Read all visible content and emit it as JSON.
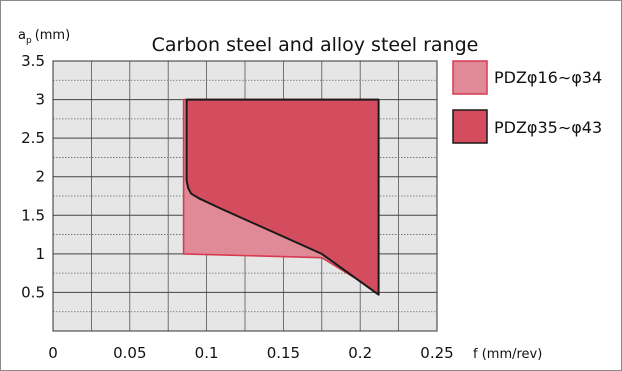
{
  "chart_data": {
    "type": "area",
    "title": "Carbon steel and alloy steel range",
    "xlabel": "f (mm/rev)",
    "ylabel_main": "a",
    "ylabel_sub": "p",
    "ylabel_unit": "(mm)",
    "xlim": [
      0,
      0.25
    ],
    "ylim": [
      0,
      3.5
    ],
    "x_ticks": [
      "0",
      "0.05",
      "0.1",
      "0.15",
      "0.2",
      "0.25"
    ],
    "y_ticks": [
      "0.5",
      "1",
      "1.5",
      "2",
      "2.5",
      "3",
      "3.5"
    ],
    "grid": true,
    "legend_position": "right",
    "series": [
      {
        "name": "PDZφ16∼φ34",
        "color": "#df8a96",
        "stroke": "#d63a50",
        "points": [
          [
            0.085,
            1.0
          ],
          [
            0.085,
            3.0
          ],
          [
            0.212,
            3.0
          ],
          [
            0.212,
            0.5
          ],
          [
            0.175,
            0.95
          ],
          [
            0.085,
            1.0
          ]
        ]
      },
      {
        "name": "PDZφ35∼φ43",
        "color": "#d44d5e",
        "stroke": "#1a1a1a",
        "points": [
          [
            0.087,
            3.0
          ],
          [
            0.087,
            1.95
          ],
          [
            0.088,
            1.85
          ],
          [
            0.09,
            1.78
          ],
          [
            0.095,
            1.72
          ],
          [
            0.11,
            1.58
          ],
          [
            0.175,
            1.0
          ],
          [
            0.212,
            0.47
          ],
          [
            0.212,
            3.0
          ]
        ]
      }
    ]
  }
}
